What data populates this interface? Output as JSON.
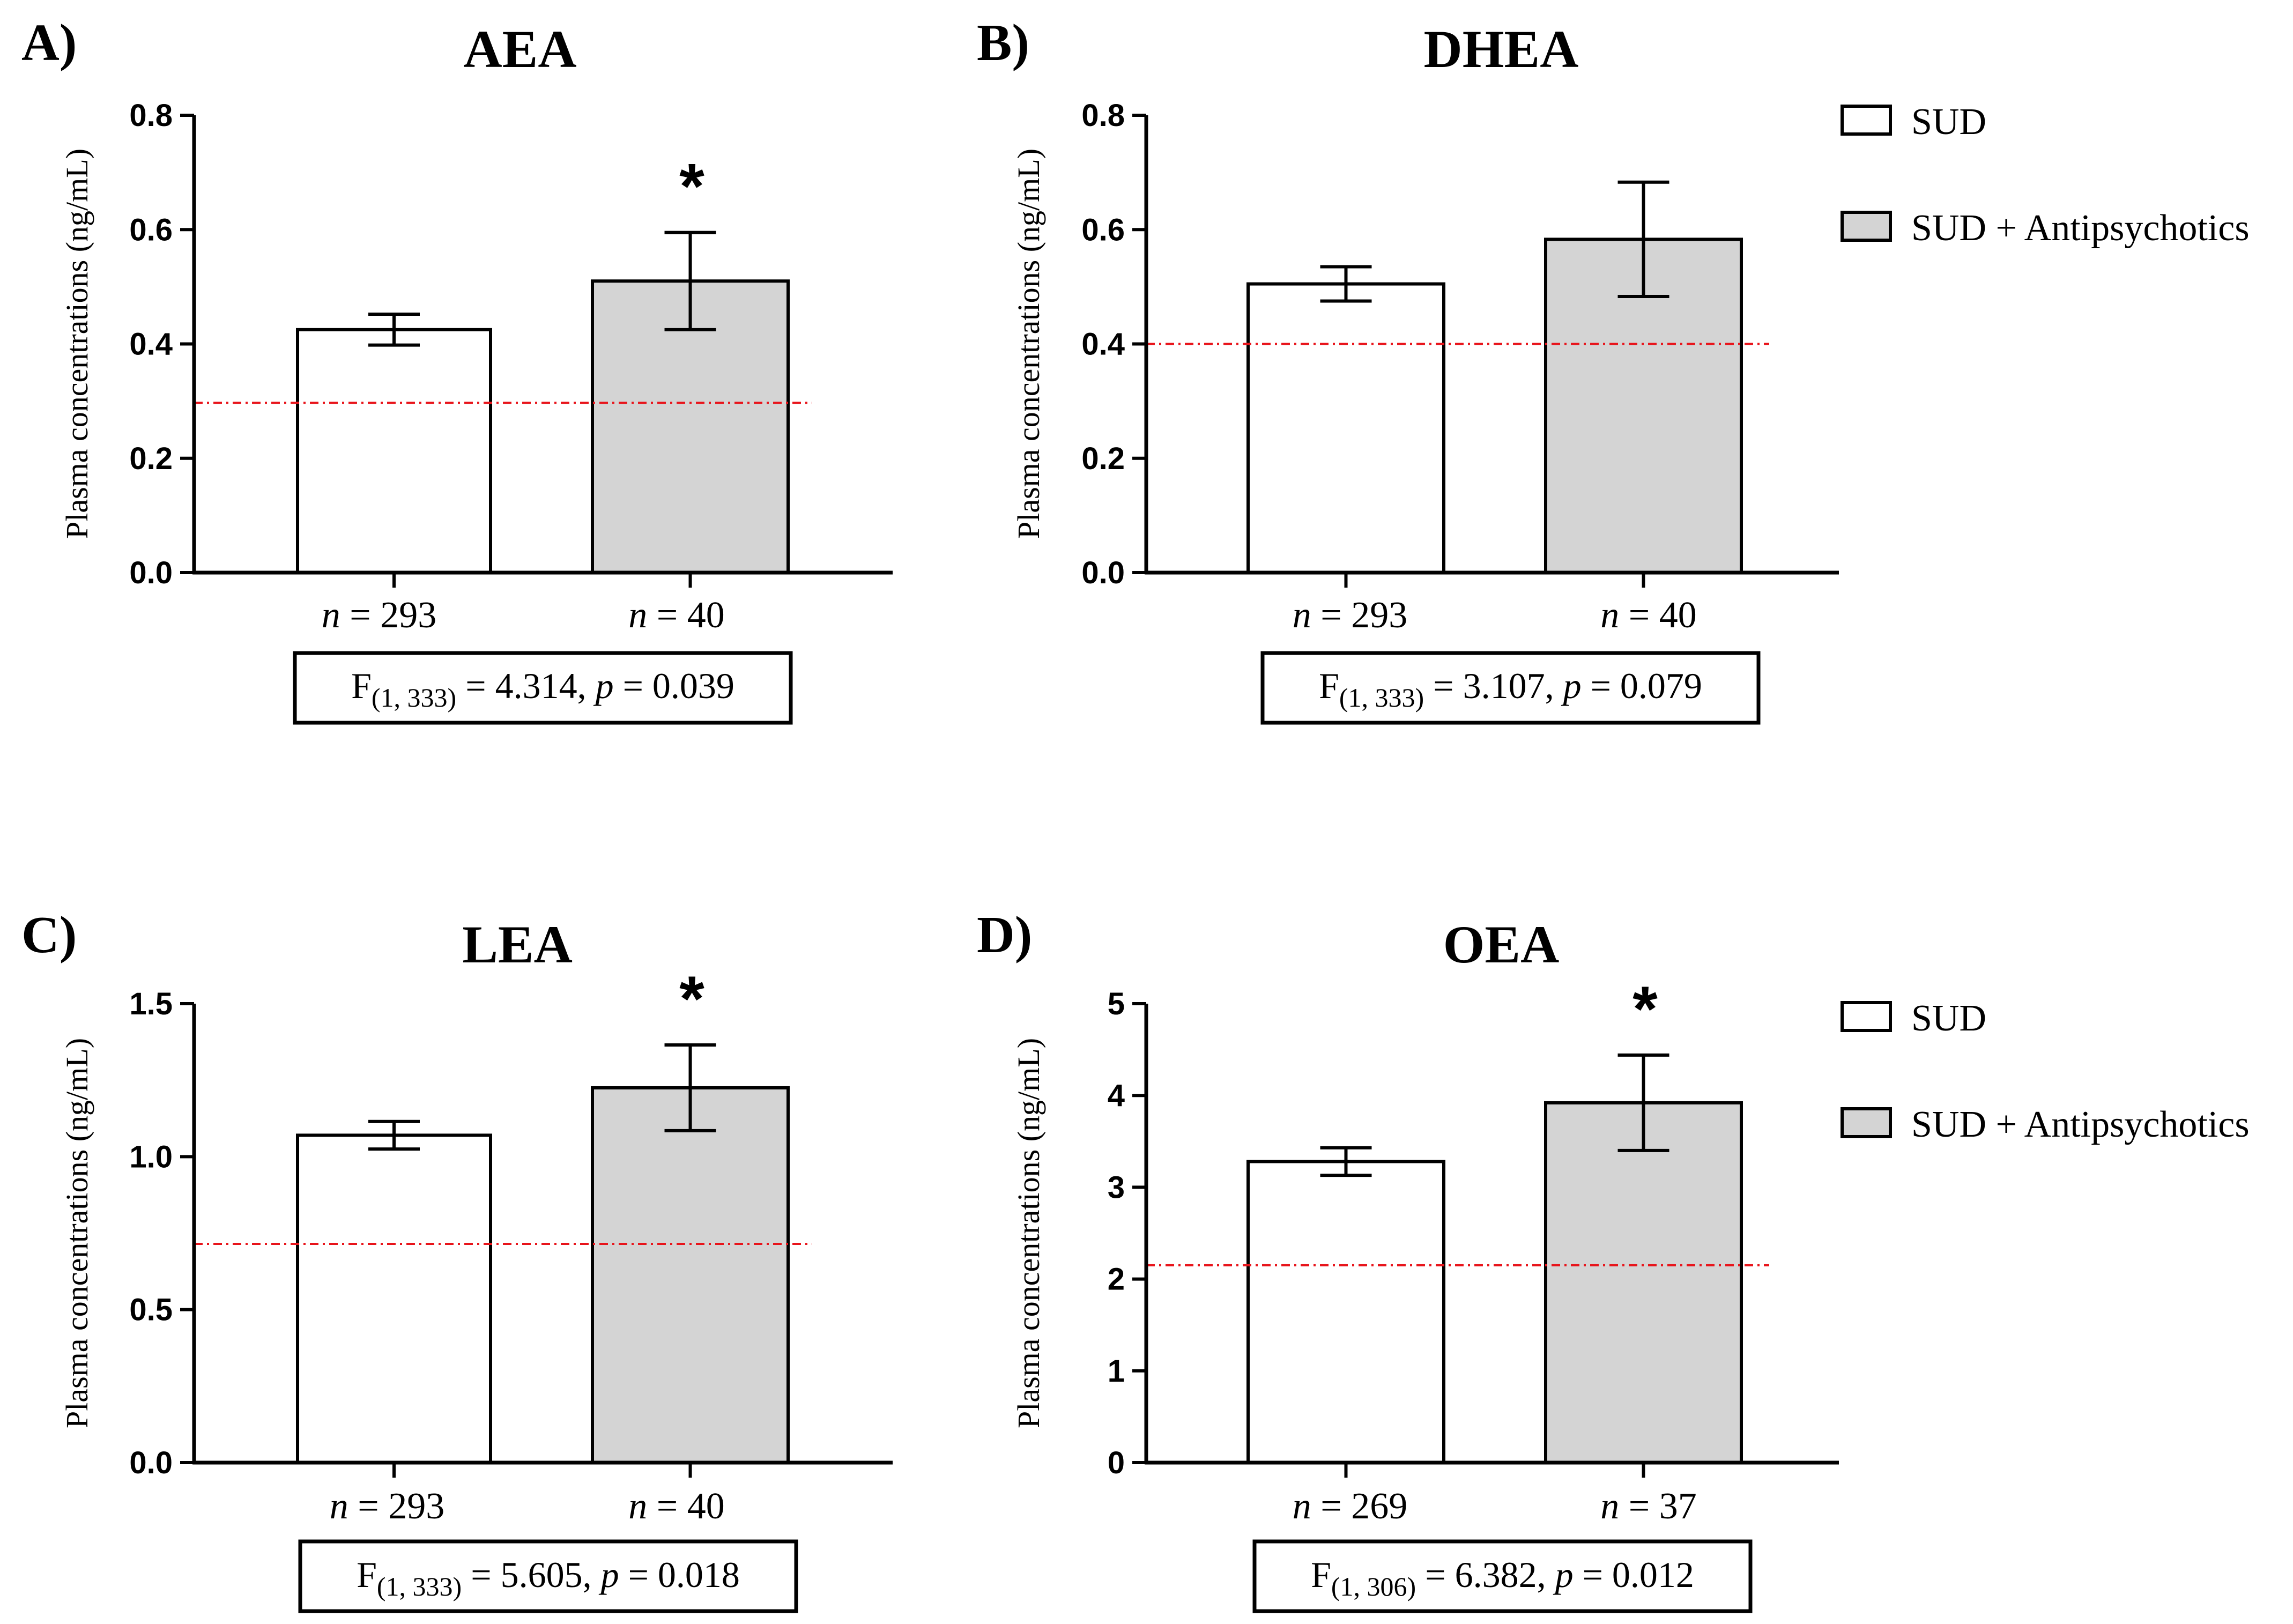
{
  "figure": {
    "colors": {
      "bar_sud": "#ffffff",
      "bar_antipsychotics": "#d4d4d4",
      "axis": "#000000",
      "reference_line": "#e8141b"
    },
    "legend": [
      "SUD",
      "SUD + Antipsychotics"
    ],
    "n_prefix": "n",
    "stat_F": "F",
    "stat_p": "p"
  },
  "chart_data": [
    {
      "type": "bar",
      "panel": "A)",
      "title": "AEA",
      "ylabel": "Plasma concentrations (ng/mL)",
      "ylim": [
        0,
        0.8
      ],
      "yticks": [
        "0.0",
        "0.2",
        "0.4",
        "0.6",
        "0.8"
      ],
      "ytick_values": [
        0,
        0.2,
        0.4,
        0.6,
        0.8
      ],
      "series": [
        {
          "name": "SUD",
          "value": 0.425,
          "error": 0.027,
          "n": "293"
        },
        {
          "name": "SUD + Antipsychotics",
          "value": 0.51,
          "error": 0.085,
          "n": "40"
        }
      ],
      "reference_line": 0.297,
      "significance": [
        "",
        "*"
      ],
      "stat": {
        "df": "(1, 333)",
        "F": "4.314",
        "p": "0.039"
      }
    },
    {
      "type": "bar",
      "panel": "B)",
      "title": "DHEA",
      "ylabel": "Plasma concentrations (ng/mL)",
      "ylim": [
        0,
        0.8
      ],
      "yticks": [
        "0.0",
        "0.2",
        "0.4",
        "0.6",
        "0.8"
      ],
      "ytick_values": [
        0,
        0.2,
        0.4,
        0.6,
        0.8
      ],
      "series": [
        {
          "name": "SUD",
          "value": 0.505,
          "error": 0.03,
          "n": "293"
        },
        {
          "name": "SUD + Antipsychotics",
          "value": 0.583,
          "error": 0.1,
          "n": "40"
        }
      ],
      "reference_line": 0.4,
      "significance": [
        "",
        ""
      ],
      "stat": {
        "df": "(1, 333)",
        "F": "3.107",
        "p": "0.079"
      }
    },
    {
      "type": "bar",
      "panel": "C)",
      "title": "LEA",
      "ylabel": "Plasma concentrations (ng/mL)",
      "ylim": [
        0,
        1.5
      ],
      "yticks": [
        "0.0",
        "0.5",
        "1.0",
        "1.5"
      ],
      "ytick_values": [
        0,
        0.5,
        1.0,
        1.5
      ],
      "series": [
        {
          "name": "SUD",
          "value": 1.07,
          "error": 0.045,
          "n": "293"
        },
        {
          "name": "SUD + Antipsychotics",
          "value": 1.225,
          "error": 0.14,
          "n": "40"
        }
      ],
      "reference_line": 0.715,
      "significance": [
        "",
        "*"
      ],
      "stat": {
        "df": "(1, 333)",
        "F": "5.605",
        "p": "0.018"
      }
    },
    {
      "type": "bar",
      "panel": "D)",
      "title": "OEA",
      "ylabel": "Plasma concentrations (ng/mL)",
      "ylim": [
        0,
        5
      ],
      "yticks": [
        "0",
        "1",
        "2",
        "3",
        "4",
        "5"
      ],
      "ytick_values": [
        0,
        1,
        2,
        3,
        4,
        5
      ],
      "series": [
        {
          "name": "SUD",
          "value": 3.28,
          "error": 0.15,
          "n": "269"
        },
        {
          "name": "SUD + Antipsychotics",
          "value": 3.92,
          "error": 0.52,
          "n": "37"
        }
      ],
      "reference_line": 2.15,
      "significance": [
        "",
        "*"
      ],
      "stat": {
        "df": "(1, 306)",
        "F": "6.382",
        "p": "0.012"
      }
    }
  ]
}
